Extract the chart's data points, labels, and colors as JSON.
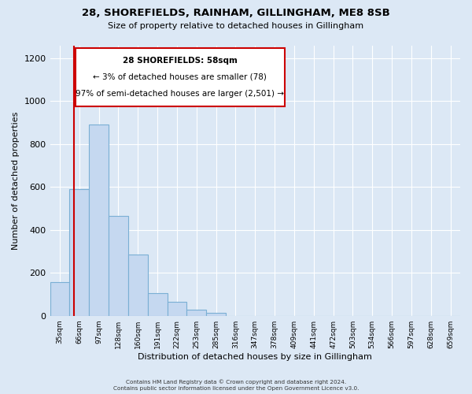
{
  "title": "28, SHOREFIELDS, RAINHAM, GILLINGHAM, ME8 8SB",
  "subtitle": "Size of property relative to detached houses in Gillingham",
  "xlabel": "Distribution of detached houses by size in Gillingham",
  "ylabel": "Number of detached properties",
  "bar_color": "#c5d8f0",
  "bar_edge_color": "#7aafd4",
  "background_color": "#dce8f5",
  "grid_color": "#ffffff",
  "annotation_box_color": "#ffffff",
  "annotation_border_color": "#cc0000",
  "property_line_color": "#cc0000",
  "categories": [
    "35sqm",
    "66sqm",
    "97sqm",
    "128sqm",
    "160sqm",
    "191sqm",
    "222sqm",
    "253sqm",
    "285sqm",
    "316sqm",
    "347sqm",
    "378sqm",
    "409sqm",
    "441sqm",
    "472sqm",
    "503sqm",
    "534sqm",
    "566sqm",
    "597sqm",
    "628sqm",
    "659sqm"
  ],
  "values": [
    155,
    590,
    890,
    465,
    285,
    105,
    65,
    28,
    12,
    0,
    0,
    0,
    0,
    0,
    0,
    0,
    0,
    0,
    0,
    0,
    0
  ],
  "ylim": [
    0,
    1260
  ],
  "property_line_x": 0.72,
  "annotation_text_line1": "28 SHOREFIELDS: 58sqm",
  "annotation_text_line2": "← 3% of detached houses are smaller (78)",
  "annotation_text_line3": "97% of semi-detached houses are larger (2,501) →",
  "footer_line1": "Contains HM Land Registry data © Crown copyright and database right 2024.",
  "footer_line2": "Contains public sector information licensed under the Open Government Licence v3.0."
}
